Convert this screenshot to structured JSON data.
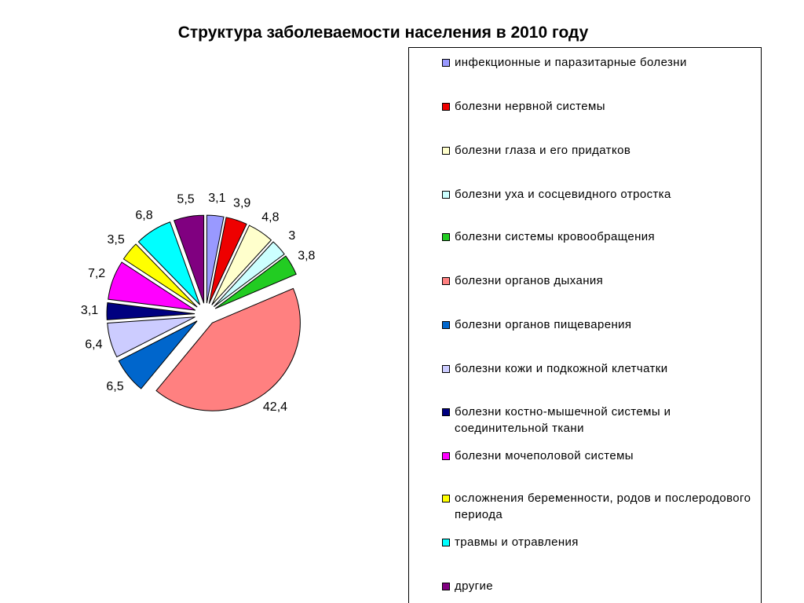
{
  "chart_data": {
    "type": "pie",
    "title": "Структура заболеваемости населения в 2010 году",
    "categories": [
      "инфекционные и паразитарные болезни",
      "болезни нервной системы",
      "болезни глаза и его придатков",
      "болезни уха и сосцевидного отростка",
      "болезни системы кровообращения",
      "болезни органов дыхания",
      "болезни органов пищеварения",
      "болезни кожи и подкожной клетчатки",
      "болезни костно-мышечной системы и соединительной ткани",
      "болезни мочеполовой системы",
      "осложнения беременности, родов и послеродового периода",
      "травмы и отравления",
      "другие"
    ],
    "values": [
      3.1,
      3.9,
      4.8,
      3,
      3.8,
      42.4,
      6.5,
      6.4,
      3.1,
      7.2,
      3.5,
      6.8,
      5.5
    ],
    "value_labels": [
      "3,1",
      "3,9",
      "4,8",
      "3",
      "3,8",
      "42,4",
      "6,5",
      "6,4",
      "3,1",
      "7,2",
      "3,5",
      "6,8",
      "5,5"
    ],
    "colors": [
      "#9999ff",
      "#ee0000",
      "#ffffcc",
      "#ccffff",
      "#22cc22",
      "#ff8080",
      "#0066cc",
      "#ccccff",
      "#000080",
      "#ff00ff",
      "#ffff00",
      "#00ffff",
      "#800080"
    ]
  }
}
